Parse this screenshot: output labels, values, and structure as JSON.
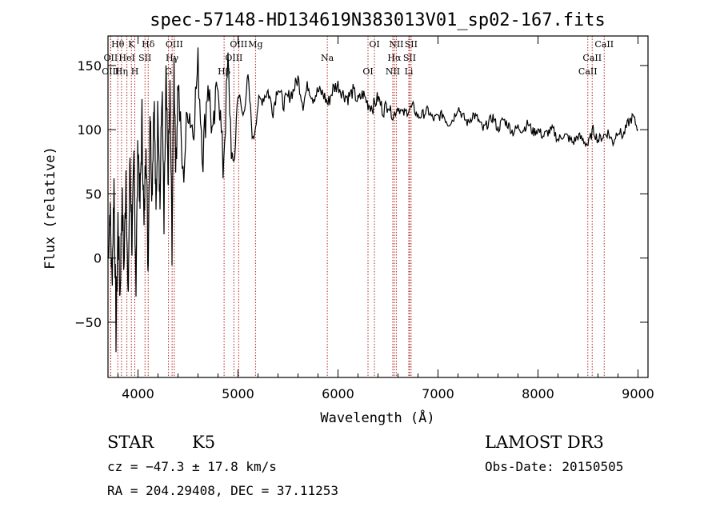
{
  "chart_data": {
    "type": "line",
    "title": "spec-57148-HD134619N383013V01_sp02-167.fits",
    "xlabel": "Wavelength (Å)",
    "ylabel": "Flux (relative)",
    "xlim": [
      3700,
      9100
    ],
    "ylim": [
      -93,
      173
    ],
    "xticks": [
      4000,
      5000,
      6000,
      7000,
      8000,
      9000
    ],
    "yticks": [
      -50,
      0,
      50,
      100,
      150
    ],
    "grid": false,
    "series": [
      {
        "x": [
          3700,
          3720,
          3740,
          3760,
          3780,
          3800,
          3820,
          3840,
          3860,
          3880,
          3900,
          3920,
          3940,
          3960,
          3980,
          4000,
          4020,
          4040,
          4060,
          4080,
          4100,
          4120,
          4140,
          4160,
          4180,
          4200,
          4220,
          4240,
          4260,
          4280,
          4300,
          4320,
          4340,
          4360,
          4380,
          4400,
          4450,
          4500,
          4550,
          4600,
          4650,
          4700,
          4750,
          4800,
          4850,
          4900,
          4950,
          5000,
          5050,
          5100,
          5150,
          5200,
          5250,
          5300,
          5350,
          5400,
          5450,
          5500,
          5550,
          5600,
          5650,
          5700,
          5750,
          5800,
          5850,
          5900,
          5950,
          6000,
          6050,
          6100,
          6150,
          6200,
          6250,
          6300,
          6350,
          6400,
          6450,
          6500,
          6550,
          6600,
          6650,
          6700,
          6750,
          6800,
          6850,
          6900,
          6950,
          7000,
          7050,
          7100,
          7150,
          7200,
          7250,
          7300,
          7350,
          7400,
          7450,
          7500,
          7550,
          7600,
          7650,
          7700,
          7750,
          7800,
          7850,
          7900,
          7950,
          8000,
          8050,
          8100,
          8150,
          8200,
          8250,
          8300,
          8350,
          8400,
          8450,
          8500,
          8550,
          8600,
          8650,
          8700,
          8750,
          8800,
          8850,
          8900,
          8950,
          9000
        ],
        "y": [
          0,
          40,
          -20,
          60,
          -60,
          30,
          -30,
          50,
          -10,
          70,
          -40,
          80,
          10,
          75,
          -20,
          95,
          40,
          110,
          20,
          100,
          -10,
          120,
          50,
          130,
          30,
          125,
          40,
          135,
          20,
          140,
          60,
          130,
          10,
          150,
          70,
          140,
          60,
          120,
          100,
          150,
          80,
          140,
          90,
          145,
          70,
          150,
          60,
          130,
          110,
          140,
          90,
          120,
          125,
          130,
          115,
          135,
          120,
          125,
          130,
          140,
          120,
          135,
          125,
          130,
          128,
          120,
          132,
          135,
          128,
          125,
          130,
          122,
          128,
          120,
          118,
          125,
          115,
          120,
          110,
          118,
          112,
          115,
          118,
          110,
          112,
          115,
          108,
          110,
          112,
          105,
          108,
          118,
          110,
          105,
          112,
          108,
          100,
          105,
          110,
          100,
          108,
          104,
          98,
          102,
          100,
          105,
          98,
          100,
          95,
          98,
          100,
          92,
          96,
          94,
          90,
          95,
          92,
          88,
          100,
          92,
          95,
          98,
          90,
          100,
          95,
          105,
          110,
          100
        ]
      }
    ],
    "lines": [
      {
        "label": "Hθ",
        "x": 3798
      },
      {
        "label": "OII",
        "x": 3727
      },
      {
        "label": "OIII",
        "x": 3726
      },
      {
        "label": "K",
        "x": 3934
      },
      {
        "label": "HeI",
        "x": 3889
      },
      {
        "label": "Hη",
        "x": 3835
      },
      {
        "label": "Hδ",
        "x": 4102
      },
      {
        "label": "SII",
        "x": 4070
      },
      {
        "label": "H",
        "x": 3968
      },
      {
        "label": "OIII",
        "x": 4363
      },
      {
        "label": "Hγ",
        "x": 4341
      },
      {
        "label": "G",
        "x": 4305
      },
      {
        "label": "OIII",
        "x": 5007
      },
      {
        "label": "OIII",
        "x": 4959
      },
      {
        "label": "Hβ",
        "x": 4861
      },
      {
        "label": "Mg",
        "x": 5175
      },
      {
        "label": "Na",
        "x": 5893
      },
      {
        "label": "OI",
        "x": 6300
      },
      {
        "label": "OI",
        "x": 6364
      },
      {
        "label": "Hα",
        "x": 6563
      },
      {
        "label": "NII",
        "x": 6548
      },
      {
        "label": "NII",
        "x": 6583
      },
      {
        "label": "SII",
        "x": 6716
      },
      {
        "label": "Li",
        "x": 6708
      },
      {
        "label": "SII",
        "x": 6731
      },
      {
        "label": "CaII",
        "x": 8542
      },
      {
        "label": "CaII",
        "x": 8498
      },
      {
        "label": "CaII",
        "x": 8662
      }
    ]
  },
  "info": {
    "class": "STAR",
    "subclass": "K5",
    "cz": "cz = −47.3 ± 17.8 km/s",
    "radec": "RA = 204.29408, DEC =  37.11253",
    "survey": "LAMOST DR3",
    "obsdate": "Obs-Date: 20150505"
  }
}
